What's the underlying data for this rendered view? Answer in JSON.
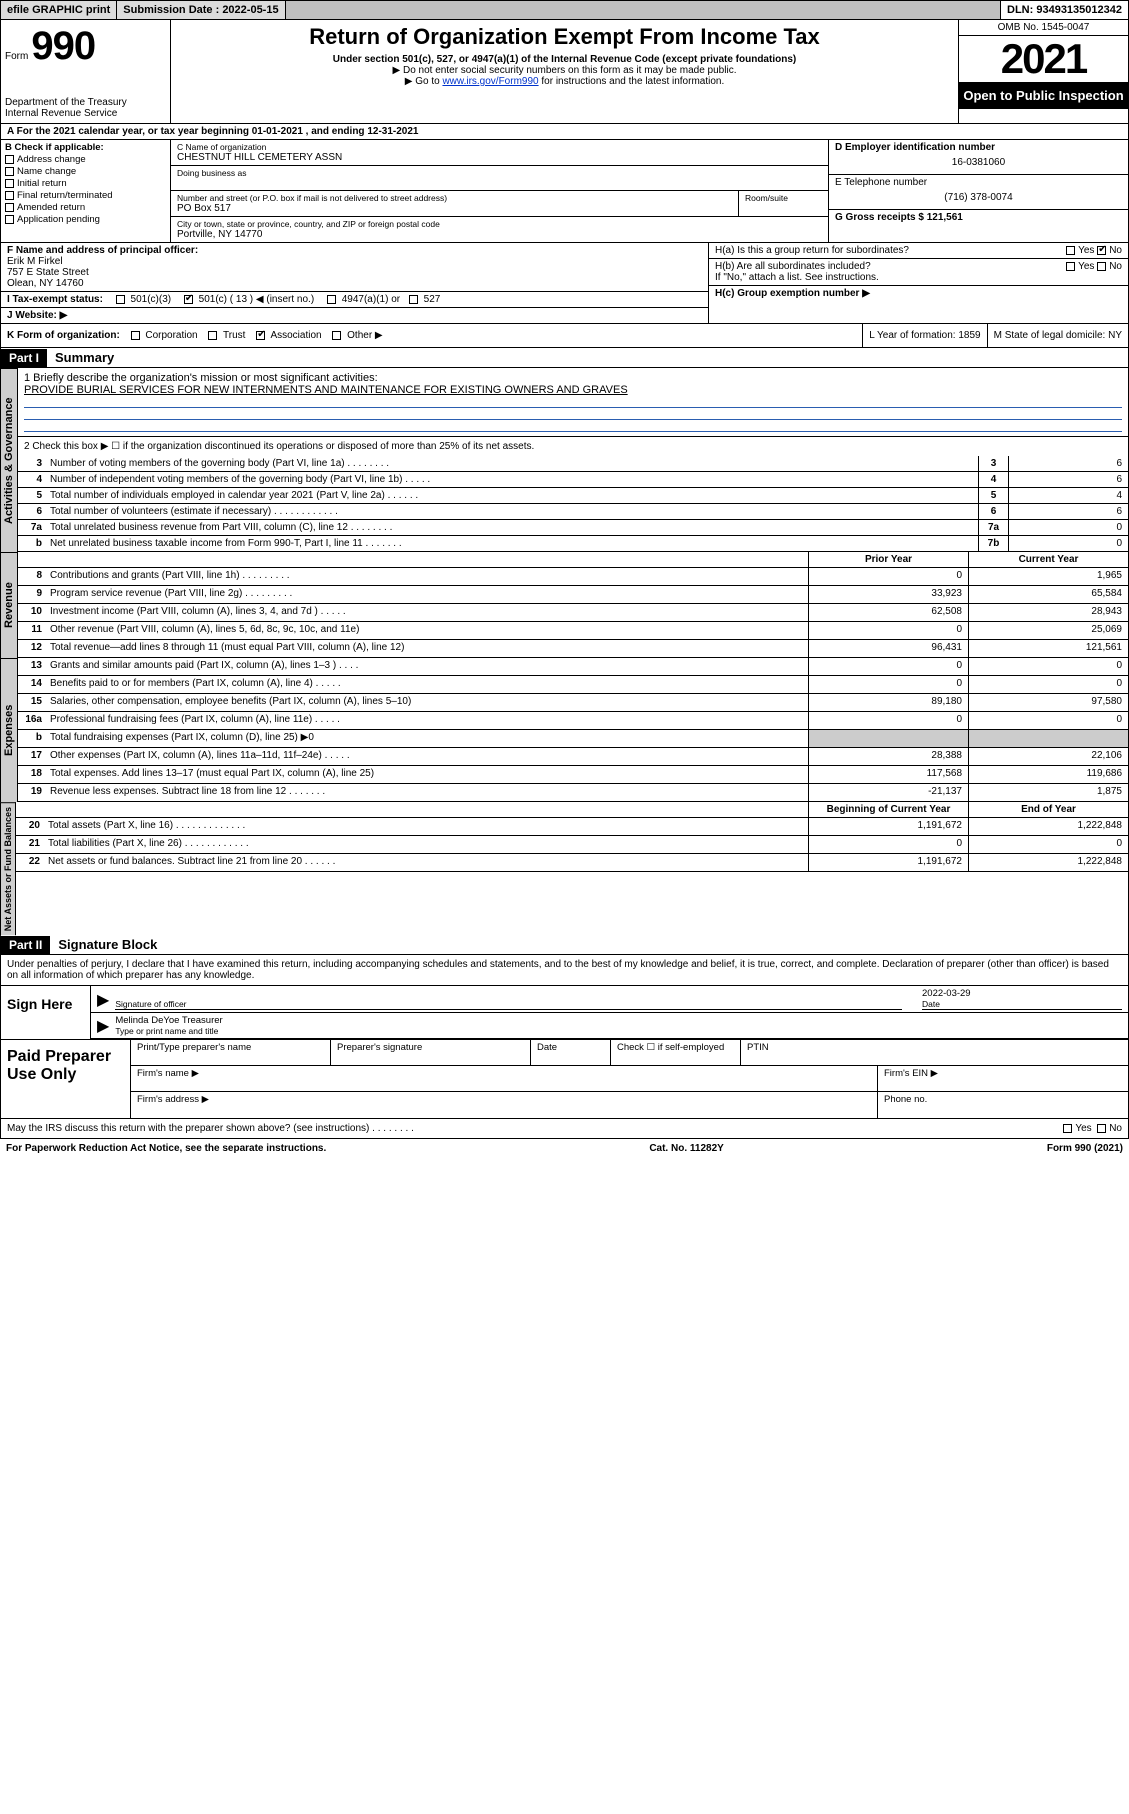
{
  "topbar": {
    "efile": "efile GRAPHIC print",
    "submission_label": "Submission Date : 2022-05-15",
    "dln": "DLN: 93493135012342"
  },
  "header": {
    "form_label": "Form",
    "form_number": "990",
    "dept": "Department of the Treasury",
    "irs": "Internal Revenue Service",
    "title": "Return of Organization Exempt From Income Tax",
    "subtitle": "Under section 501(c), 527, or 4947(a)(1) of the Internal Revenue Code (except private foundations)",
    "note1": "▶ Do not enter social security numbers on this form as it may be made public.",
    "note2_pre": "▶ Go to ",
    "note2_link": "www.irs.gov/Form990",
    "note2_post": " for instructions and the latest information.",
    "omb": "OMB No. 1545-0047",
    "year": "2021",
    "open_pub": "Open to Public Inspection"
  },
  "lineA": "A For the 2021 calendar year, or tax year beginning 01-01-2021    , and ending 12-31-2021",
  "boxB": {
    "title": "B Check if applicable:",
    "items": [
      "Address change",
      "Name change",
      "Initial return",
      "Final return/terminated",
      "Amended return",
      "Application pending"
    ]
  },
  "boxC": {
    "name_label": "C Name of organization",
    "name": "CHESTNUT HILL CEMETERY ASSN",
    "dba_label": "Doing business as",
    "addr_label": "Number and street (or P.O. box if mail is not delivered to street address)",
    "room_label": "Room/suite",
    "addr": "PO Box 517",
    "city_label": "City or town, state or province, country, and ZIP or foreign postal code",
    "city": "Portville, NY  14770"
  },
  "boxD": {
    "label": "D Employer identification number",
    "value": "16-0381060"
  },
  "boxE": {
    "label": "E Telephone number",
    "value": "(716) 378-0074"
  },
  "boxG": {
    "label": "G Gross receipts $",
    "value": "121,561"
  },
  "boxF": {
    "label": "F Name and address of principal officer:",
    "name": "Erik M Firkel",
    "addr1": "757 E State Street",
    "addr2": "Olean, NY  14760"
  },
  "boxH": {
    "a": "H(a)  Is this a group return for subordinates?",
    "b": "H(b)  Are all subordinates included?",
    "b_note": "If \"No,\" attach a list. See instructions.",
    "c": "H(c)  Group exemption number ▶",
    "yes": "Yes",
    "no": "No"
  },
  "boxI": {
    "label": "I   Tax-exempt status:",
    "o501c3": "501(c)(3)",
    "o501c": "501(c) ( 13 ) ◀ (insert no.)",
    "o4947": "4947(a)(1) or",
    "o527": "527"
  },
  "boxJ": "J   Website: ▶",
  "boxK": {
    "label": "K Form of organization:",
    "corp": "Corporation",
    "trust": "Trust",
    "assoc": "Association",
    "other": "Other ▶"
  },
  "boxL": "L Year of formation: 1859",
  "boxM": "M State of legal domicile: NY",
  "part1": {
    "hdr": "Part I",
    "title": "Summary"
  },
  "summary": {
    "l1_label": "1   Briefly describe the organization's mission or most significant activities:",
    "l1_text": "PROVIDE BURIAL SERVICES FOR NEW INTERNMENTS AND MAINTENANCE FOR EXISTING OWNERS AND GRAVES",
    "l2": "2   Check this box ▶ ☐  if the organization discontinued its operations or disposed of more than 25% of its net assets.",
    "rows": [
      {
        "n": "3",
        "t": "Number of voting members of the governing body (Part VI, line 1a)   .    .    .    .    .    .    .    .",
        "box": "3",
        "v": "6"
      },
      {
        "n": "4",
        "t": "Number of independent voting members of the governing body (Part VI, line 1b)   .    .    .    .    .",
        "box": "4",
        "v": "6"
      },
      {
        "n": "5",
        "t": "Total number of individuals employed in calendar year 2021 (Part V, line 2a)   .    .    .    .    .    .",
        "box": "5",
        "v": "4"
      },
      {
        "n": "6",
        "t": "Total number of volunteers (estimate if necessary)   .    .    .    .    .    .    .    .    .    .    .    .",
        "box": "6",
        "v": "6"
      },
      {
        "n": "7a",
        "t": "Total unrelated business revenue from Part VIII, column (C), line 12   .    .    .    .    .    .    .    .",
        "box": "7a",
        "v": "0"
      },
      {
        "n": "b",
        "t": "Net unrelated business taxable income from Form 990-T, Part I, line 11   .    .    .    .    .    .    .",
        "box": "7b",
        "v": "0"
      }
    ]
  },
  "fin_hdr": {
    "prior": "Prior Year",
    "current": "Current Year"
  },
  "revenue": [
    {
      "n": "8",
      "t": "Contributions and grants (Part VIII, line 1h)   .    .    .    .    .    .    .    .    .",
      "p": "0",
      "c": "1,965"
    },
    {
      "n": "9",
      "t": "Program service revenue (Part VIII, line 2g)   .    .    .    .    .    .    .    .    .",
      "p": "33,923",
      "c": "65,584"
    },
    {
      "n": "10",
      "t": "Investment income (Part VIII, column (A), lines 3, 4, and 7d )   .    .    .    .    .",
      "p": "62,508",
      "c": "28,943"
    },
    {
      "n": "11",
      "t": "Other revenue (Part VIII, column (A), lines 5, 6d, 8c, 9c, 10c, and 11e)",
      "p": "0",
      "c": "25,069"
    },
    {
      "n": "12",
      "t": "Total revenue—add lines 8 through 11 (must equal Part VIII, column (A), line 12)",
      "p": "96,431",
      "c": "121,561"
    }
  ],
  "expenses": [
    {
      "n": "13",
      "t": "Grants and similar amounts paid (Part IX, column (A), lines 1–3 )   .    .    .    .",
      "p": "0",
      "c": "0"
    },
    {
      "n": "14",
      "t": "Benefits paid to or for members (Part IX, column (A), line 4)   .    .    .    .    .",
      "p": "0",
      "c": "0"
    },
    {
      "n": "15",
      "t": "Salaries, other compensation, employee benefits (Part IX, column (A), lines 5–10)",
      "p": "89,180",
      "c": "97,580"
    },
    {
      "n": "16a",
      "t": "Professional fundraising fees (Part IX, column (A), line 11e)   .    .    .    .    .",
      "p": "0",
      "c": "0"
    },
    {
      "n": "b",
      "t": "Total fundraising expenses (Part IX, column (D), line 25) ▶0",
      "shade": true
    },
    {
      "n": "17",
      "t": "Other expenses (Part IX, column (A), lines 11a–11d, 11f–24e)   .    .    .    .    .",
      "p": "28,388",
      "c": "22,106"
    },
    {
      "n": "18",
      "t": "Total expenses. Add lines 13–17 (must equal Part IX, column (A), line 25)",
      "p": "117,568",
      "c": "119,686"
    },
    {
      "n": "19",
      "t": "Revenue less expenses. Subtract line 18 from line 12   .    .    .    .    .    .    .",
      "p": "-21,137",
      "c": "1,875"
    }
  ],
  "net_hdr": {
    "begin": "Beginning of Current Year",
    "end": "End of Year"
  },
  "netassets": [
    {
      "n": "20",
      "t": "Total assets (Part X, line 16)   .    .    .    .    .    .    .    .    .    .    .    .    .",
      "p": "1,191,672",
      "c": "1,222,848"
    },
    {
      "n": "21",
      "t": "Total liabilities (Part X, line 26)   .    .    .    .    .    .    .    .    .    .    .    .",
      "p": "0",
      "c": "0"
    },
    {
      "n": "22",
      "t": "Net assets or fund balances. Subtract line 21 from line 20   .    .    .    .    .    .",
      "p": "1,191,672",
      "c": "1,222,848"
    }
  ],
  "vtabs": {
    "gov": "Activities & Governance",
    "rev": "Revenue",
    "exp": "Expenses",
    "net": "Net Assets or Fund Balances"
  },
  "part2": {
    "hdr": "Part II",
    "title": "Signature Block"
  },
  "sig": {
    "decl": "Under penalties of perjury, I declare that I have examined this return, including accompanying schedules and statements, and to the best of my knowledge and belief, it is true, correct, and complete. Declaration of preparer (other than officer) is based on all information of which preparer has any knowledge.",
    "sign_here": "Sign Here",
    "sig_officer": "Signature of officer",
    "date_label": "Date",
    "date": "2022-03-29",
    "name": "Melinda DeYoe  Treasurer",
    "name_label": "Type or print name and title",
    "paid": "Paid Preparer Use Only",
    "prep_name": "Print/Type preparer's name",
    "prep_sig": "Preparer's signature",
    "prep_date": "Date",
    "prep_check": "Check ☐ if self-employed",
    "ptin": "PTIN",
    "firm_name": "Firm's name     ▶",
    "firm_ein": "Firm's EIN ▶",
    "firm_addr": "Firm's address ▶",
    "phone": "Phone no."
  },
  "footer": {
    "discuss": "May the IRS discuss this return with the preparer shown above? (see instructions)   .    .    .    .    .    .    .    .",
    "yes": "Yes",
    "no": "No",
    "paperwork": "For Paperwork Reduction Act Notice, see the separate instructions.",
    "cat": "Cat. No. 11282Y",
    "form": "Form 990 (2021)"
  }
}
